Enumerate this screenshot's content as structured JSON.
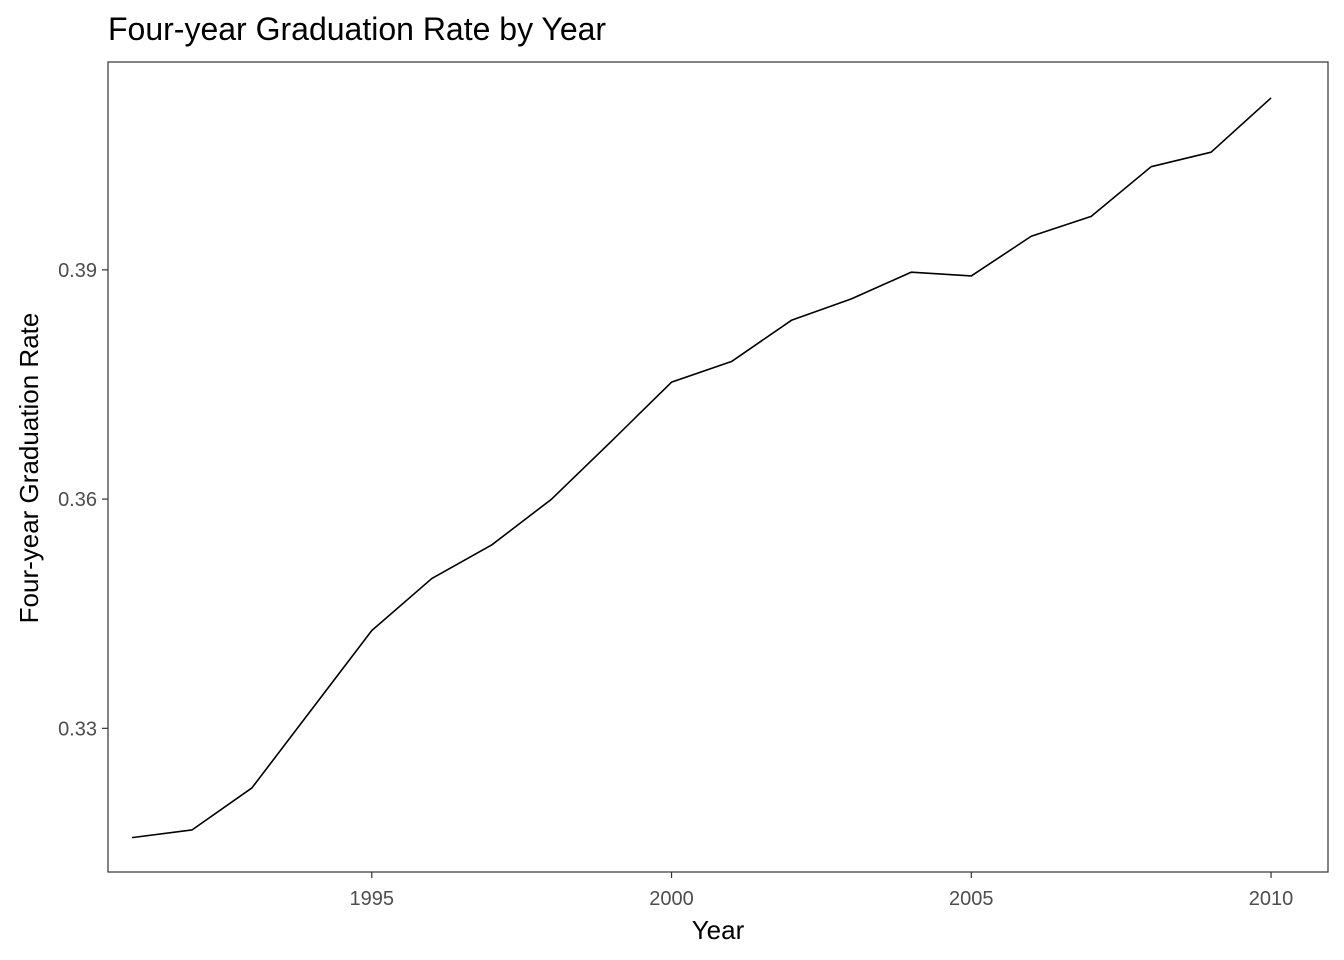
{
  "chart_data": {
    "type": "line",
    "title": "Four-year Graduation Rate by Year",
    "xlabel": "Year",
    "ylabel": "Four-year Graduation Rate",
    "xlim": [
      1990.6,
      2010.95
    ],
    "ylim": [
      0.3112,
      0.4172
    ],
    "x_ticks": [
      1995,
      2000,
      2005,
      2010
    ],
    "x_tick_labels": [
      "1995",
      "2000",
      "2005",
      "2010"
    ],
    "y_ticks": [
      0.33,
      0.36,
      0.39
    ],
    "y_tick_labels": [
      "0.33",
      "0.36",
      "0.39"
    ],
    "grid": false,
    "legend": "none",
    "line_color": "#000000",
    "series": [
      {
        "x": [
          1991,
          1992,
          1993,
          1994,
          1995,
          1996,
          1997,
          1998,
          1999,
          2000,
          2001,
          2002,
          2003,
          2004,
          2005,
          2006,
          2007,
          2008,
          2009,
          2010
        ],
        "values": [
          0.3157,
          0.3167,
          0.3222,
          0.3325,
          0.3428,
          0.3496,
          0.354,
          0.36,
          0.3676,
          0.3753,
          0.378,
          0.3834,
          0.3862,
          0.3897,
          0.3892,
          0.3944,
          0.397,
          0.4035,
          0.4054,
          0.4125
        ]
      }
    ]
  }
}
